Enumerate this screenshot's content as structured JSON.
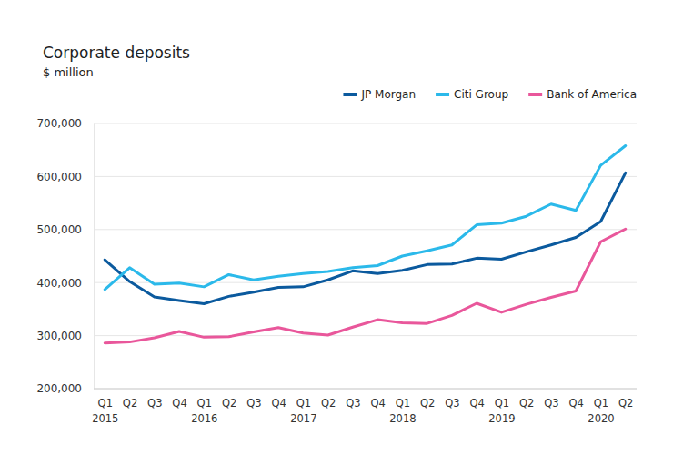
{
  "chart_data": {
    "type": "line",
    "title": "Corporate deposits",
    "subtitle": "$ million",
    "categories": [
      "Q1 2015",
      "Q2",
      "Q3",
      "Q4",
      "Q1 2016",
      "Q2",
      "Q3",
      "Q4",
      "Q1 2017",
      "Q2",
      "Q3",
      "Q4",
      "Q1 2018",
      "Q2",
      "Q3",
      "Q4",
      "Q1 2019",
      "Q2",
      "Q3",
      "Q4",
      "Q1 2020",
      "Q2"
    ],
    "series": [
      {
        "name": "JP Morgan",
        "color": "#0b5a9e",
        "values": [
          443000,
          402000,
          373000,
          366000,
          360000,
          374000,
          382000,
          391000,
          392000,
          405000,
          422000,
          417000,
          423000,
          434000,
          435000,
          446000,
          444000,
          458000,
          471000,
          485000,
          515000,
          607000
        ]
      },
      {
        "name": "Citi Group",
        "color": "#2bb9ea",
        "values": [
          387000,
          428000,
          397000,
          399000,
          392000,
          415000,
          405000,
          412000,
          417000,
          421000,
          428000,
          432000,
          450000,
          460000,
          471000,
          509000,
          512000,
          525000,
          548000,
          536000,
          621000,
          658000
        ]
      },
      {
        "name": "Bank of America",
        "color": "#e9579b",
        "values": [
          286000,
          288000,
          296000,
          308000,
          297000,
          298000,
          307000,
          315000,
          305000,
          301000,
          316000,
          330000,
          324000,
          323000,
          338000,
          361000,
          344000,
          359000,
          372000,
          384000,
          477000,
          501000
        ]
      }
    ],
    "ylim": [
      200000,
      700000
    ],
    "yticks": [
      {
        "value": 200000,
        "label": "200,000"
      },
      {
        "value": 300000,
        "label": "300,000"
      },
      {
        "value": 400000,
        "label": "400,000"
      },
      {
        "value": 500000,
        "label": "500,000"
      },
      {
        "value": 600000,
        "label": "600,000"
      },
      {
        "value": 700000,
        "label": "700,000"
      }
    ],
    "grid": true,
    "legend": "top-right"
  }
}
